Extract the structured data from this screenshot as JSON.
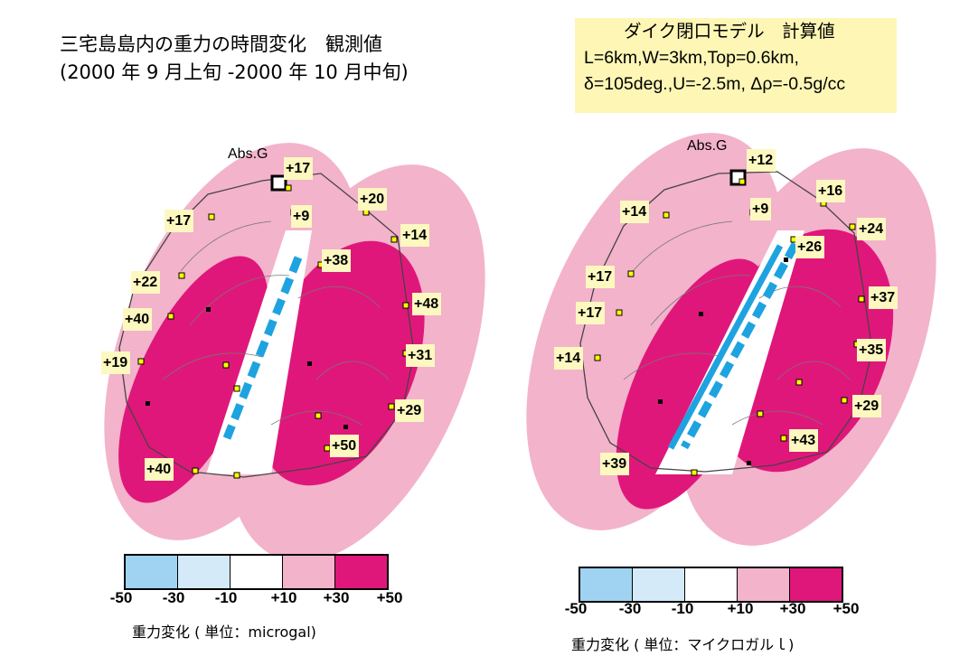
{
  "left_panel": {
    "title_line1": "三宅島島内の重力の時間変化　観測値",
    "title_line2": "(2000 年 9 月上旬 -2000 年 10 月中旬)",
    "abs_label": "Abs.G",
    "stations": [
      "+17",
      "+20",
      "+17",
      "+9",
      "+14",
      "+38",
      "+22",
      "+48",
      "+40",
      "+31",
      "+19",
      "+29",
      "+50",
      "+40"
    ],
    "unit_label": "重力変化 ( 単位：microgal)"
  },
  "right_panel": {
    "title_line1": "ダイク閉口モデル　計算値",
    "title_line2": "L=6km,W=3km,Top=0.6km,",
    "title_line3": "δ=105deg.,U=-2.5m, Δρ=-0.5g/cc",
    "abs_label": "Abs.G",
    "stations": [
      "+12",
      "+16",
      "+14",
      "+9",
      "+24",
      "+26",
      "+17",
      "+37",
      "+17",
      "+35",
      "+14",
      "+29",
      "+43",
      "+39"
    ],
    "unit_label": "重力変化 ( 単位：マイクロガルｌ)"
  },
  "color_scale": {
    "ticks": [
      "-50",
      "-30",
      "-10",
      "+10",
      "+30",
      "+50"
    ],
    "colors": [
      "#9fd3f1",
      "#d5eaf8",
      "#ffffff",
      "#f3b3cb",
      "#e0177a"
    ]
  },
  "colors": {
    "strong_positive": "#e0177a",
    "weak_positive": "#f3b3cb",
    "dike_line": "#1ea3e0",
    "label_bg": "#fdf8bf",
    "station_marker": "#ffff00"
  }
}
